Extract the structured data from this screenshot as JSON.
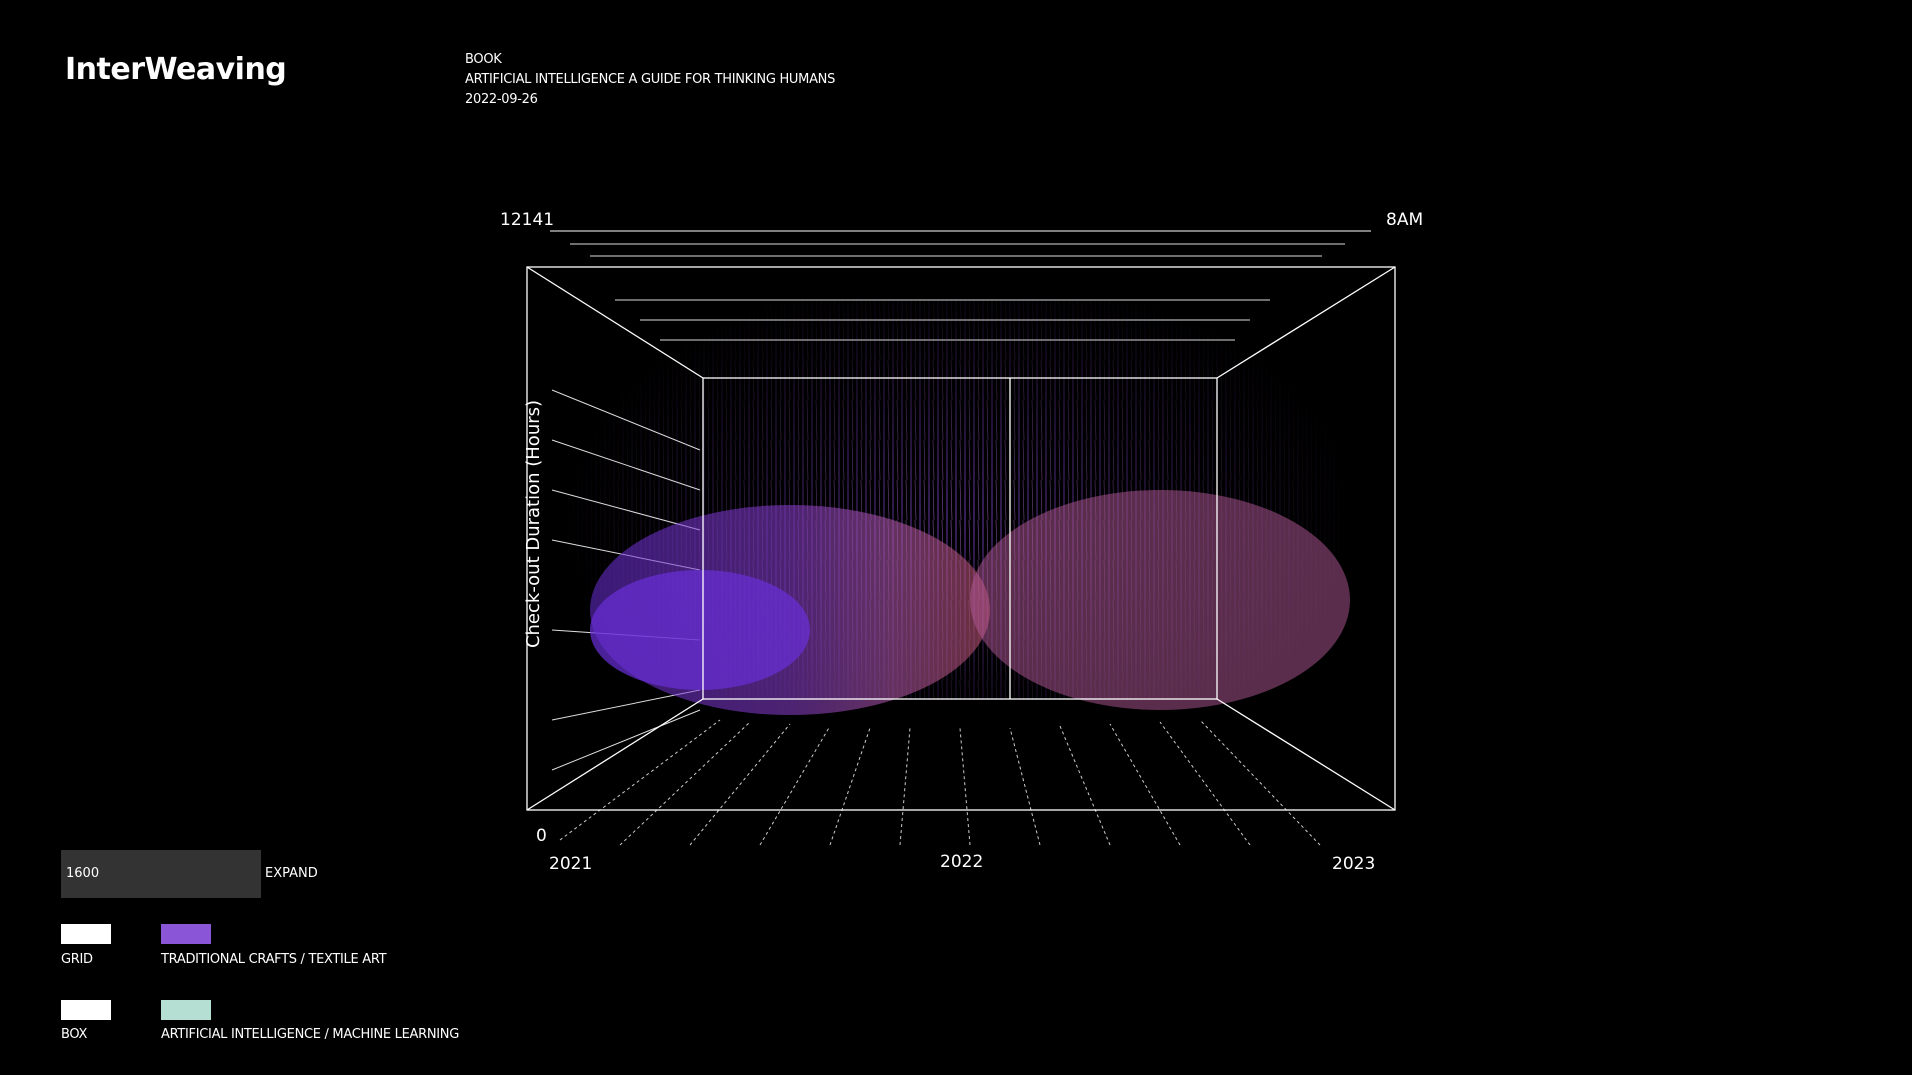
{
  "header": {
    "title": "InterWeaving",
    "kind": "BOOK",
    "book_title": "ARTIFICIAL INTELLIGENCE A GUIDE FOR THINKING HUMANS",
    "date": "2022-09-26"
  },
  "chart": {
    "y_axis_label": "Check-out Duration (Hours)",
    "y_max_label": "12141",
    "y_min_label": "0",
    "time_label": "8AM",
    "x_labels": [
      "2021",
      "2022",
      "2023"
    ]
  },
  "controls": {
    "input_value": "1600",
    "button": "EXPAND"
  },
  "legend": [
    {
      "label": "GRID",
      "color": "#ffffff"
    },
    {
      "label": "TRADITIONAL CRAFTS / TEXTILE ART",
      "color": "#8a55d6"
    },
    {
      "label": "BOX",
      "color": "#ffffff"
    },
    {
      "label": "ARTIFICIAL INTELLIGENCE / MACHINE LEARNING",
      "color": "#b5dfd3"
    }
  ]
}
